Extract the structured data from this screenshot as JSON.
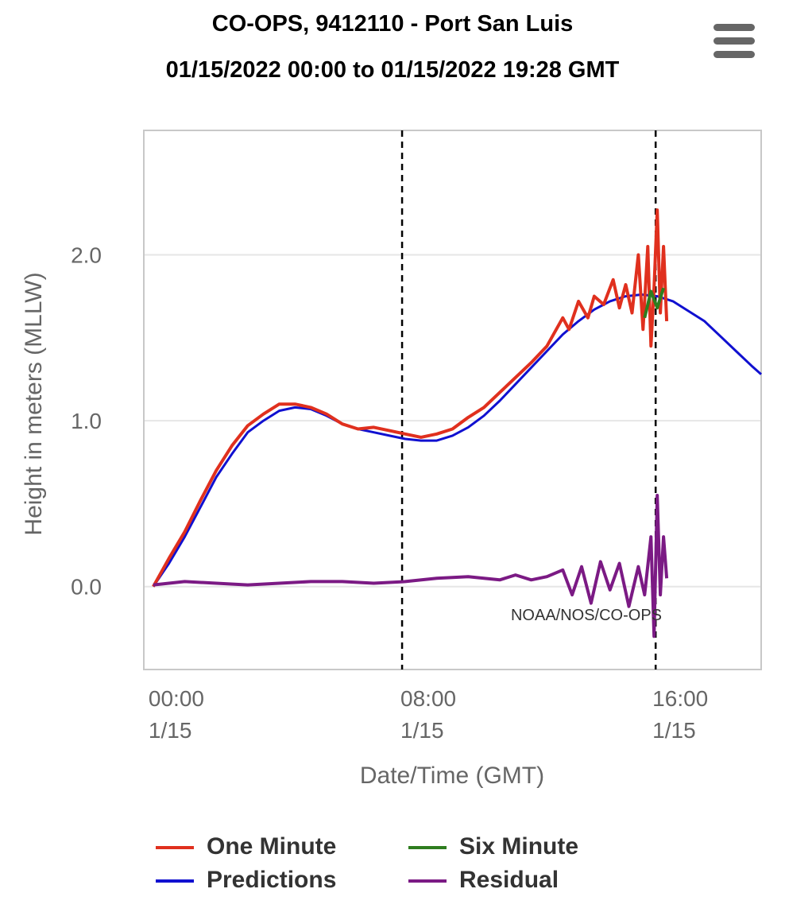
{
  "header": {
    "title_line1": "CO-OPS, 9412110 - Port San Luis",
    "title_line2": "01/15/2022 00:00 to 01/15/2022 19:28 GMT",
    "menu_icon": "hamburger-menu-icon"
  },
  "chart_data": {
    "type": "line",
    "title": "CO-OPS, 9412110 - Port San Luis",
    "subtitle": "01/15/2022 00:00 to 01/15/2022 19:28 GMT",
    "xlabel": "Date/Time (GMT)",
    "ylabel": "Height in meters (MLLW)",
    "xlim_hours": [
      -0.3,
      19.3
    ],
    "ylim": [
      -0.5,
      2.75
    ],
    "grid": true,
    "legend_position": "bottom",
    "credit": "NOAA/NOS/CO-OPS",
    "x_ticks": [
      {
        "hour": 0,
        "time": "00:00",
        "date": "1/15"
      },
      {
        "hour": 8,
        "time": "08:00",
        "date": "1/15"
      },
      {
        "hour": 16,
        "time": "16:00",
        "date": "1/15"
      }
    ],
    "y_ticks": [
      {
        "value": 0,
        "label": "0.0"
      },
      {
        "value": 1,
        "label": "1.0"
      },
      {
        "value": 2,
        "label": "2.0"
      }
    ],
    "vertical_markers_hours": [
      7.9,
      15.95
    ],
    "series": [
      {
        "name": "One Minute",
        "color": "#e0301e",
        "x": [
          0,
          0.5,
          1,
          1.5,
          2,
          2.5,
          3,
          3.5,
          4,
          4.5,
          5,
          5.5,
          6,
          6.5,
          7,
          7.5,
          8,
          8.5,
          9,
          9.5,
          10,
          10.5,
          11,
          11.5,
          12,
          12.5,
          13,
          13.2,
          13.5,
          13.8,
          14,
          14.3,
          14.6,
          14.8,
          15,
          15.2,
          15.4,
          15.55,
          15.7,
          15.8,
          15.9,
          16.0,
          16.1,
          16.2,
          16.3
        ],
        "y": [
          0,
          0.17,
          0.33,
          0.52,
          0.7,
          0.85,
          0.97,
          1.04,
          1.1,
          1.1,
          1.08,
          1.04,
          0.98,
          0.95,
          0.96,
          0.94,
          0.92,
          0.9,
          0.92,
          0.95,
          1.02,
          1.08,
          1.17,
          1.26,
          1.35,
          1.45,
          1.62,
          1.55,
          1.72,
          1.62,
          1.75,
          1.7,
          1.85,
          1.68,
          1.82,
          1.65,
          2.0,
          1.55,
          2.05,
          1.45,
          1.8,
          2.27,
          1.65,
          2.05,
          1.6
        ]
      },
      {
        "name": "Six Minute",
        "color": "#2e7d1f",
        "x": [
          15.6,
          15.8,
          16.0,
          16.2
        ],
        "y": [
          1.62,
          1.78,
          1.68,
          1.8
        ]
      },
      {
        "name": "Predictions",
        "color": "#1010d0",
        "x": [
          0,
          0.5,
          1,
          1.5,
          2,
          2.5,
          3,
          3.5,
          4,
          4.5,
          5,
          5.5,
          6,
          6.5,
          7,
          7.5,
          8,
          8.5,
          9,
          9.5,
          10,
          10.5,
          11,
          11.5,
          12,
          12.5,
          13,
          13.5,
          14,
          14.5,
          15,
          15.5,
          16,
          16.5,
          17,
          17.5,
          18,
          18.5,
          19,
          19.3
        ],
        "y": [
          0,
          0.14,
          0.3,
          0.48,
          0.66,
          0.8,
          0.93,
          1.0,
          1.06,
          1.08,
          1.07,
          1.03,
          0.98,
          0.95,
          0.93,
          0.91,
          0.89,
          0.88,
          0.88,
          0.91,
          0.96,
          1.03,
          1.12,
          1.22,
          1.32,
          1.42,
          1.52,
          1.6,
          1.67,
          1.72,
          1.75,
          1.76,
          1.75,
          1.72,
          1.66,
          1.6,
          1.51,
          1.42,
          1.33,
          1.28
        ]
      },
      {
        "name": "Residual",
        "color": "#7b1a84",
        "x": [
          0,
          1,
          2,
          3,
          4,
          5,
          6,
          7,
          8,
          9,
          10,
          10.5,
          11,
          11.5,
          12,
          12.5,
          13,
          13.3,
          13.6,
          13.9,
          14.2,
          14.5,
          14.8,
          15.1,
          15.4,
          15.6,
          15.8,
          15.9,
          16.0,
          16.1,
          16.2,
          16.3
        ],
        "y": [
          0.01,
          0.03,
          0.02,
          0.01,
          0.02,
          0.03,
          0.03,
          0.02,
          0.03,
          0.05,
          0.06,
          0.05,
          0.04,
          0.07,
          0.04,
          0.06,
          0.1,
          -0.05,
          0.12,
          -0.1,
          0.15,
          -0.02,
          0.14,
          -0.12,
          0.12,
          -0.05,
          0.3,
          -0.3,
          0.55,
          -0.05,
          0.3,
          0.05
        ]
      }
    ]
  },
  "legend": [
    {
      "label": "One Minute",
      "color": "#e0301e"
    },
    {
      "label": "Predictions",
      "color": "#1010d0"
    },
    {
      "label": "Six Minute",
      "color": "#2e7d1f"
    },
    {
      "label": "Residual",
      "color": "#7b1a84"
    }
  ]
}
